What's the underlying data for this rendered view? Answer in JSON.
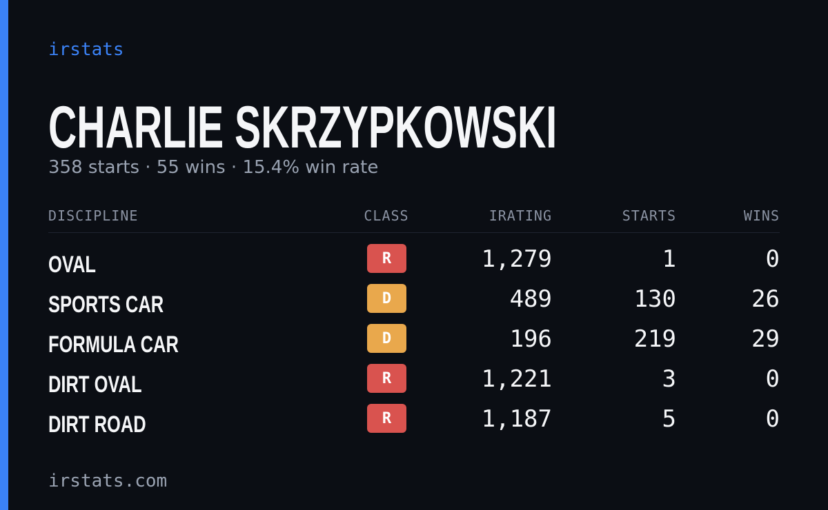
{
  "brand": "irstats",
  "profile": {
    "name": "CHARLIE SKRZYPKOWSKI",
    "summary": "358 starts · 55 wins · 15.4% win rate"
  },
  "table": {
    "columns": [
      "DISCIPLINE",
      "CLASS",
      "IRATING",
      "STARTS",
      "WINS"
    ],
    "rows": [
      [
        "OVAL",
        "R",
        "1,279",
        "1",
        "0"
      ],
      [
        "SPORTS CAR",
        "D",
        "489",
        "130",
        "26"
      ],
      [
        "FORMULA CAR",
        "D",
        "196",
        "219",
        "29"
      ],
      [
        "DIRT OVAL",
        "R",
        "1,221",
        "3",
        "0"
      ],
      [
        "DIRT ROAD",
        "R",
        "1,187",
        "5",
        "0"
      ]
    ],
    "class_colors": {
      "R": "#d9534f",
      "D": "#e9a84c"
    }
  },
  "footer": "irstats.com"
}
